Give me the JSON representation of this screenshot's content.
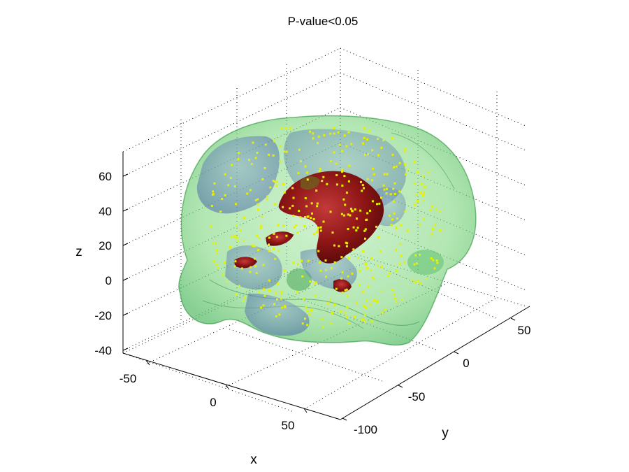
{
  "title": "P-value<0.05",
  "axes": {
    "x": {
      "label": "x",
      "ticks": [
        "-50",
        "0",
        "50"
      ]
    },
    "y": {
      "label": "y",
      "ticks": [
        "-100",
        "-50",
        "0",
        "50"
      ]
    },
    "z": {
      "label": "z",
      "ticks": [
        "-40",
        "-20",
        "0",
        "20",
        "40",
        "60"
      ]
    }
  },
  "grid": true,
  "colors": {
    "brain_surface": "#7fd67f",
    "brain_edge": "#3f9f4f",
    "blue_regions": "#5a7fb8",
    "red_regions": "#9b1b1b",
    "points": "#e6f000"
  }
}
